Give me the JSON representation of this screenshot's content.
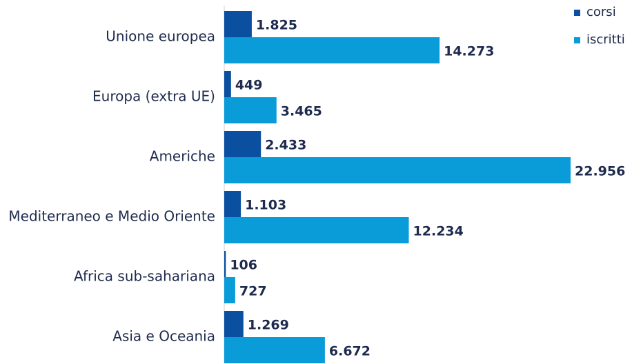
{
  "chart_data": {
    "type": "bar",
    "orientation": "horizontal",
    "categories": [
      "Unione europea",
      "Europa (extra UE)",
      "Americhe",
      "Mediterraneo e Medio Oriente",
      "Africa sub-sahariana",
      "Asia e Oceania"
    ],
    "series": [
      {
        "name": "corsi",
        "color": "#0b4fa0",
        "values": [
          1825,
          449,
          2433,
          1103,
          106,
          1269
        ],
        "value_labels": [
          "1.825",
          "449",
          "2.433",
          "1.103",
          "106",
          "1.269"
        ]
      },
      {
        "name": "iscritti",
        "color": "#0a9bd9",
        "values": [
          14273,
          3465,
          22956,
          12234,
          727,
          6672
        ],
        "value_labels": [
          "14.273",
          "3.465",
          "22.956",
          "12.234",
          "727",
          "6.672"
        ]
      }
    ],
    "legend": "top-right"
  }
}
